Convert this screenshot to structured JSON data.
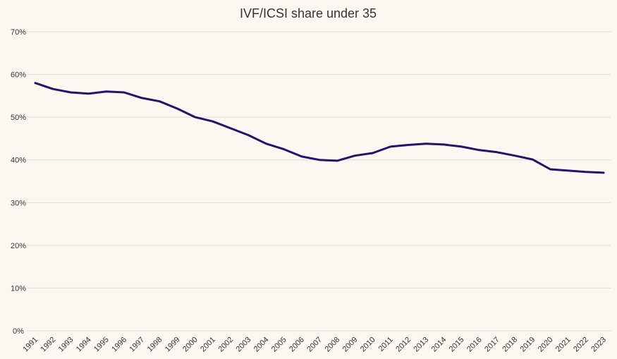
{
  "chart_data": {
    "type": "line",
    "title": "IVF/ICSI share under 35",
    "xlabel": "",
    "ylabel": "",
    "x": [
      "1991",
      "1992",
      "1993",
      "1994",
      "1995",
      "1996",
      "1997",
      "1998",
      "1999",
      "2000",
      "2001",
      "2002",
      "2003",
      "2004",
      "2005",
      "2006",
      "2007",
      "2008",
      "2009",
      "2010",
      "2011",
      "2012",
      "2013",
      "2014",
      "2015",
      "2016",
      "2017",
      "2018",
      "2019",
      "2020",
      "2021",
      "2022",
      "2023"
    ],
    "series": [
      {
        "values": [
          58.0,
          56.6,
          55.8,
          55.5,
          56.0,
          55.8,
          54.5,
          53.7,
          52.0,
          50.0,
          49.0,
          47.4,
          45.8,
          43.8,
          42.5,
          40.8,
          40.0,
          39.8,
          41.0,
          41.6,
          43.1,
          43.5,
          43.8,
          43.6,
          43.1,
          42.3,
          41.8,
          41.0,
          40.1,
          37.8,
          37.5,
          37.2,
          37.0
        ]
      }
    ],
    "ylim": [
      0,
      70
    ],
    "yticks": [
      "0%",
      "10%",
      "20%",
      "30%",
      "40%",
      "50%",
      "60%",
      "70%"
    ],
    "grid": true,
    "legend": "none",
    "colors": {
      "line": "#20156b",
      "grid": "#e2dcd7",
      "background": "#fdf7f2"
    }
  }
}
